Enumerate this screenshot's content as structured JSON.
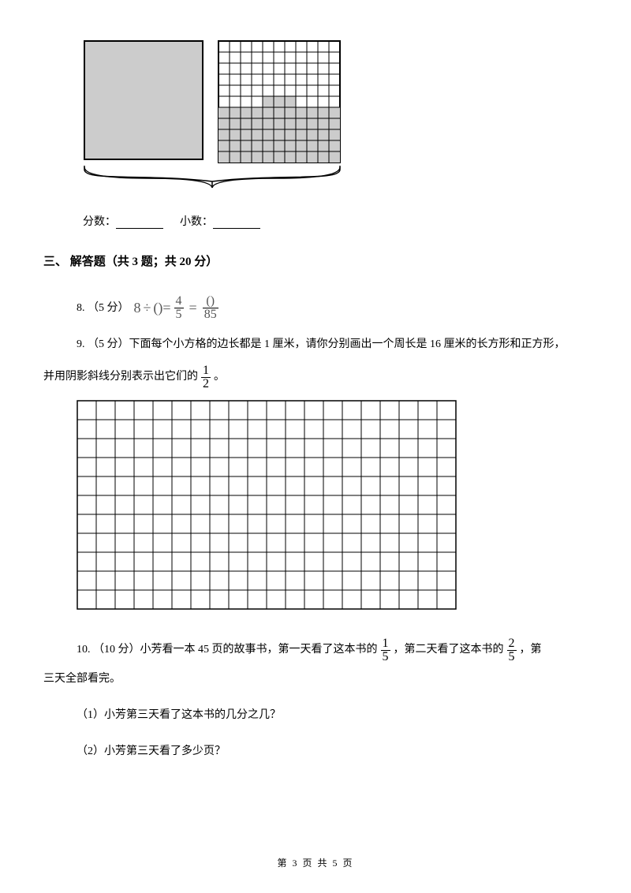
{
  "figure1": {
    "left_square_cells": 10,
    "left_fill": "#cccccc",
    "right_grid_cols": 11,
    "right_grid_rows": 11,
    "right_shaded_rows_from_bottom": 5,
    "stroke": "#000000"
  },
  "blanks": {
    "label1": "分数：",
    "label2": "小数："
  },
  "section3": {
    "heading": "三、 解答题（共 3 题；共 20 分）"
  },
  "q8": {
    "prefix": "8. （5 分）",
    "eq": {
      "lhs": "8",
      "minus_glyph": "÷",
      "blank": "()",
      "frac1_num": "4",
      "frac1_den": "5",
      "frac2_num": "()",
      "frac2_den": "85"
    }
  },
  "q9": {
    "line1_a": "9. （5 分）下面每个小方格的边长都是 1 厘米，请你分别画出一个周长是 16 厘米的长方形和正方形，",
    "line2_a": "并用阴影斜线分别表示出它们的",
    "frac_num": "1",
    "frac_den": "2",
    "line2_b": "。",
    "grid_cols": 20,
    "grid_rows": 11,
    "cell_size": 24,
    "stroke": "#000000"
  },
  "q10": {
    "part_a": "10. （10 分）小芳看一本 45 页的故事书，第一天看了这本书的",
    "frac1_num": "1",
    "frac1_den": "5",
    "part_b": "，第二天看了这本书的",
    "frac2_num": "2",
    "frac2_den": "5",
    "part_c": "，第",
    "line2": "三天全部看完。",
    "sub1": "（1）小芳第三天看了这本书的几分之几？",
    "sub2": "（2）小芳第三天看了多少页？"
  },
  "footer": {
    "text": "第 3 页 共 5 页"
  }
}
